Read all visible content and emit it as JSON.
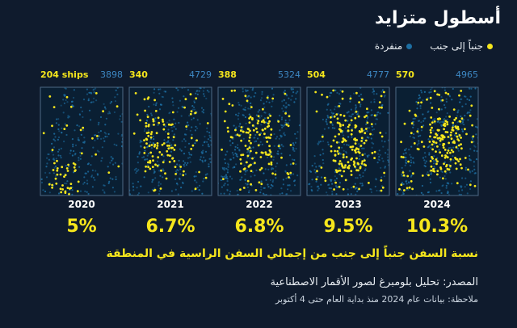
{
  "title": "أسطول متزايد",
  "legend": {
    "side_by_side": "جنباً إلى جنب",
    "single": "منفردة"
  },
  "colors": {
    "background": "#0f1b2d",
    "side_by_side": "#f5e61c",
    "single": "#1d6fa3",
    "panel_bg": "#0a1f33",
    "panel_border": "#4d6a85"
  },
  "chart_data": {
    "type": "scatter",
    "title": "أسطول متزايد",
    "years": [
      "2020",
      "2021",
      "2022",
      "2023",
      "2024"
    ],
    "series": [
      {
        "name": "جنباً إلى جنب",
        "values": [
          204,
          340,
          388,
          504,
          570
        ]
      },
      {
        "name": "منفردة",
        "values": [
          3898,
          4729,
          5324,
          4777,
          4965
        ]
      }
    ],
    "count_labels": [
      "204 ships",
      "340",
      "388",
      "504",
      "570"
    ],
    "share_labels": [
      "5%",
      "6.7%",
      "6.8%",
      "9.5%",
      "10.3%"
    ],
    "share_values": [
      5,
      6.7,
      6.8,
      9.5,
      10.3
    ]
  },
  "caption": "نسبة السفن جنباً إلى جنب من إجمالي السفن الراسية في المنطقة",
  "source": "المصدر: تحليل بلومبرغ لصور الأقمار الاصطناعية",
  "note": "ملاحظة: بيانات عام 2024 منذ بداية العام حتى 4 أكتوبر"
}
